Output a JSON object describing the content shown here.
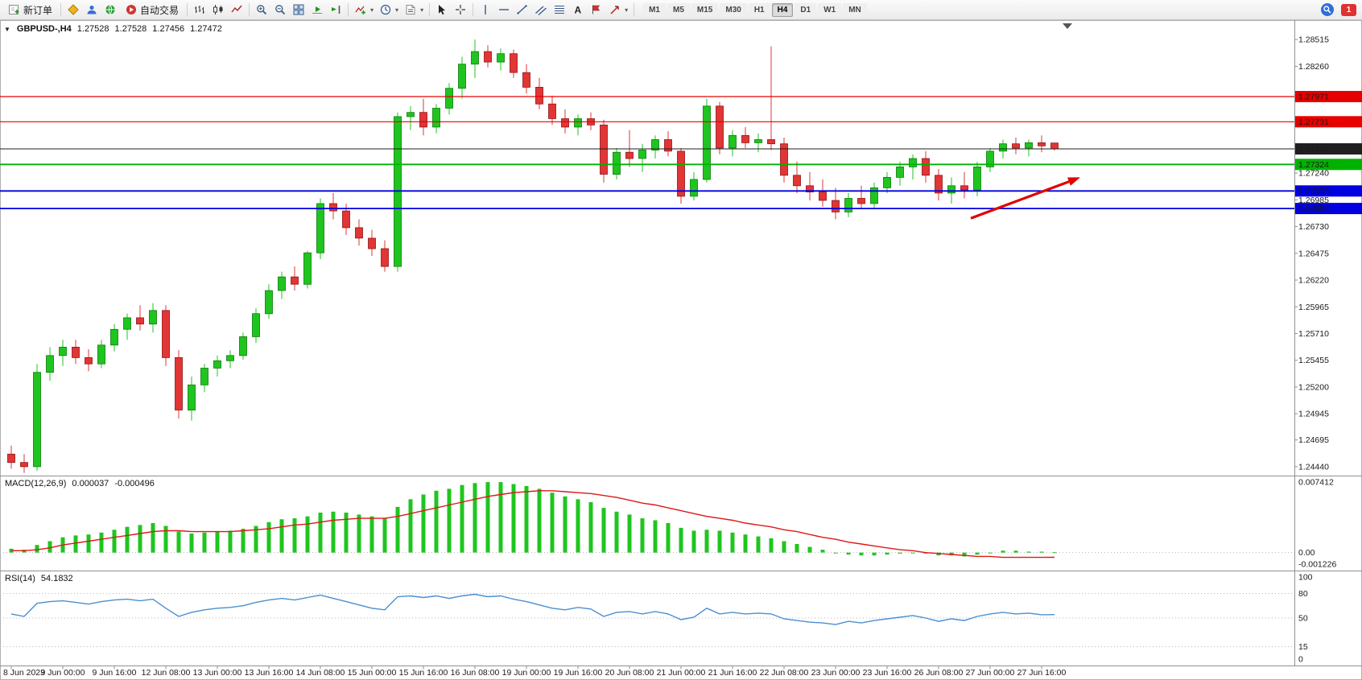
{
  "toolbar": {
    "new_order_label": "新订单",
    "autotrading_label": "自动交易",
    "timeframes": [
      "M1",
      "M5",
      "M15",
      "M30",
      "H1",
      "H4",
      "D1",
      "W1",
      "MN"
    ],
    "active_timeframe": "H4",
    "notification_count": "1"
  },
  "chart_header": {
    "symbol": "GBPUSD-,H4",
    "open": "1.27528",
    "high": "1.27528",
    "low": "1.27456",
    "close": "1.27472"
  },
  "indicator_labels": {
    "macd_name": "MACD(12,26,9)",
    "macd_value": "0.000037",
    "macd_signal_value": "-0.000496",
    "rsi_name": "RSI(14)",
    "rsi_value": "54.1832"
  },
  "axes": {
    "price_gridlines": [
      1.28515,
      1.2826,
      1.2724,
      1.26985,
      1.2673,
      1.26475,
      1.2622,
      1.25965,
      1.2571,
      1.25455,
      1.252,
      1.24945,
      1.24695,
      1.2444
    ],
    "macd_axis": [
      {
        "value": 0.007412,
        "label": "0.007412"
      },
      {
        "value": 0,
        "label": "0.00"
      },
      {
        "value": -0.001226,
        "label": "-0.001226"
      }
    ],
    "rsi_axis": [
      {
        "value": 100,
        "label": "100"
      },
      {
        "value": 80,
        "label": "80"
      },
      {
        "value": 50,
        "label": "50"
      },
      {
        "value": 15,
        "label": "15"
      },
      {
        "value": 0,
        "label": "0"
      }
    ],
    "time_labels": [
      "8 Jun 2023",
      "9 Jun 00:00",
      "9 Jun 16:00",
      "12 Jun 08:00",
      "13 Jun 00:00",
      "13 Jun 16:00",
      "14 Jun 08:00",
      "15 Jun 00:00",
      "15 Jun 16:00",
      "16 Jun 08:00",
      "19 Jun 00:00",
      "19 Jun 16:00",
      "20 Jun 08:00",
      "21 Jun 00:00",
      "21 Jun 16:00",
      "22 Jun 08:00",
      "23 Jun 00:00",
      "23 Jun 16:00",
      "26 Jun 08:00",
      "27 Jun 00:00",
      "27 Jun 16:00"
    ]
  },
  "levels": [
    {
      "name": "resistance-line-1",
      "price": 1.27971,
      "label": "1.27971",
      "color": "#e60000",
      "width": 1.2
    },
    {
      "name": "resistance-line-2",
      "price": 1.27731,
      "label": "1.27731",
      "color": "#e60000",
      "width": 1.2
    },
    {
      "name": "current-price-line",
      "price": 1.27472,
      "label": "1.27472",
      "color": "#1f1f1f",
      "width": 1
    },
    {
      "name": "support-line-green",
      "price": 1.27324,
      "label": "1.27324",
      "color": "#00b200",
      "width": 1.8
    },
    {
      "name": "support-line-blue-1",
      "price": 1.2707,
      "label": "1.27070",
      "color": "#0000e0",
      "width": 1.8
    },
    {
      "name": "support-line-blue-2",
      "price": 1.26903,
      "label": "1.26903",
      "color": "#0000e0",
      "width": 1.8
    }
  ],
  "annotation": {
    "arrow": {
      "from_index": 74.5,
      "from_price": 1.2681,
      "to_index": 83,
      "to_price": 1.272,
      "color": "#e00000"
    }
  },
  "chart_data": {
    "type": "candlestick",
    "symbol": "GBPUSD",
    "timeframe": "H4",
    "price_range": {
      "min": 1.2437,
      "max": 1.28685
    },
    "shift_marker_index": 82,
    "colors": {
      "up": "#1fc51f",
      "up_border": "#0b7a0b",
      "down": "#e23535",
      "down_border": "#8f1414",
      "macd_histogram": "#1fc51f",
      "macd_signal": "#e01717",
      "rsi_line": "#4a8fd2",
      "grid_dotted": "#b5b5b5",
      "arrow": "#e00000"
    },
    "candles": [
      [
        1.2456,
        1.2464,
        1.2442,
        1.2448
      ],
      [
        1.2448,
        1.2456,
        1.2438,
        1.2444
      ],
      [
        1.2444,
        1.2542,
        1.244,
        1.2534
      ],
      [
        1.2534,
        1.2558,
        1.2526,
        1.255
      ],
      [
        1.255,
        1.2565,
        1.254,
        1.2558
      ],
      [
        1.2558,
        1.2565,
        1.2542,
        1.2548
      ],
      [
        1.2548,
        1.2556,
        1.2535,
        1.2542
      ],
      [
        1.2542,
        1.2565,
        1.2538,
        1.256
      ],
      [
        1.256,
        1.258,
        1.2554,
        1.2575
      ],
      [
        1.2575,
        1.259,
        1.2565,
        1.2586
      ],
      [
        1.2586,
        1.2598,
        1.2574,
        1.258
      ],
      [
        1.258,
        1.26,
        1.2572,
        1.2593
      ],
      [
        1.2593,
        1.2598,
        1.254,
        1.2548
      ],
      [
        1.2548,
        1.2555,
        1.249,
        1.2498
      ],
      [
        1.2498,
        1.253,
        1.2488,
        1.2522
      ],
      [
        1.2522,
        1.2542,
        1.2515,
        1.2538
      ],
      [
        1.2538,
        1.255,
        1.253,
        1.2545
      ],
      [
        1.2545,
        1.2555,
        1.2538,
        1.255
      ],
      [
        1.255,
        1.2572,
        1.2546,
        1.2568
      ],
      [
        1.2568,
        1.2595,
        1.2562,
        1.259
      ],
      [
        1.259,
        1.2618,
        1.2585,
        1.2612
      ],
      [
        1.2612,
        1.263,
        1.2604,
        1.2625
      ],
      [
        1.2625,
        1.2635,
        1.2612,
        1.2618
      ],
      [
        1.2618,
        1.265,
        1.2614,
        1.2648
      ],
      [
        1.2648,
        1.27,
        1.2642,
        1.2695
      ],
      [
        1.2695,
        1.2705,
        1.268,
        1.2688
      ],
      [
        1.2688,
        1.2695,
        1.2665,
        1.2672
      ],
      [
        1.2672,
        1.268,
        1.2655,
        1.2662
      ],
      [
        1.2662,
        1.267,
        1.2645,
        1.2652
      ],
      [
        1.2652,
        1.266,
        1.263,
        1.2635
      ],
      [
        1.2635,
        1.2782,
        1.263,
        1.2778
      ],
      [
        1.2778,
        1.2788,
        1.2765,
        1.2782
      ],
      [
        1.2782,
        1.2795,
        1.276,
        1.2768
      ],
      [
        1.2768,
        1.279,
        1.2762,
        1.2786
      ],
      [
        1.2786,
        1.281,
        1.278,
        1.2805
      ],
      [
        1.2805,
        1.2835,
        1.2795,
        1.2828
      ],
      [
        1.2828,
        1.28515,
        1.2815,
        1.284
      ],
      [
        1.284,
        1.2846,
        1.2825,
        1.283
      ],
      [
        1.283,
        1.2843,
        1.2822,
        1.2838
      ],
      [
        1.2838,
        1.2842,
        1.2815,
        1.282
      ],
      [
        1.282,
        1.2828,
        1.28,
        1.2806
      ],
      [
        1.2806,
        1.2815,
        1.2785,
        1.279
      ],
      [
        1.279,
        1.2798,
        1.277,
        1.2776
      ],
      [
        1.2776,
        1.2785,
        1.2762,
        1.2768
      ],
      [
        1.2768,
        1.278,
        1.276,
        1.2776
      ],
      [
        1.2776,
        1.2782,
        1.2765,
        1.277
      ],
      [
        1.277,
        1.2775,
        1.2715,
        1.2723
      ],
      [
        1.2723,
        1.2748,
        1.2718,
        1.2744
      ],
      [
        1.2744,
        1.2765,
        1.273,
        1.2738
      ],
      [
        1.2738,
        1.2752,
        1.2725,
        1.2746
      ],
      [
        1.2746,
        1.276,
        1.2738,
        1.2756
      ],
      [
        1.2756,
        1.2764,
        1.274,
        1.2745
      ],
      [
        1.2745,
        1.2748,
        1.2695,
        1.2702
      ],
      [
        1.2702,
        1.2725,
        1.2698,
        1.2718
      ],
      [
        1.2718,
        1.2795,
        1.2715,
        1.2788
      ],
      [
        1.2788,
        1.2792,
        1.2742,
        1.2748
      ],
      [
        1.2748,
        1.2765,
        1.274,
        1.276
      ],
      [
        1.276,
        1.2768,
        1.2748,
        1.2753
      ],
      [
        1.2753,
        1.2762,
        1.2744,
        1.2756
      ],
      [
        1.2756,
        1.2845,
        1.2746,
        1.2752
      ],
      [
        1.2752,
        1.2758,
        1.2715,
        1.2722
      ],
      [
        1.2722,
        1.2735,
        1.2705,
        1.2712
      ],
      [
        1.2712,
        1.2725,
        1.2698,
        1.2706
      ],
      [
        1.2706,
        1.2718,
        1.2692,
        1.2698
      ],
      [
        1.2698,
        1.271,
        1.268,
        1.2687
      ],
      [
        1.2687,
        1.2705,
        1.2682,
        1.27
      ],
      [
        1.27,
        1.2712,
        1.269,
        1.2695
      ],
      [
        1.2695,
        1.2715,
        1.269,
        1.271
      ],
      [
        1.271,
        1.2725,
        1.2705,
        1.272
      ],
      [
        1.272,
        1.2735,
        1.2712,
        1.273
      ],
      [
        1.273,
        1.2742,
        1.2718,
        1.2738
      ],
      [
        1.2738,
        1.2745,
        1.2715,
        1.2722
      ],
      [
        1.2722,
        1.2728,
        1.2698,
        1.2705
      ],
      [
        1.2705,
        1.272,
        1.2695,
        1.2712
      ],
      [
        1.2712,
        1.2725,
        1.27,
        1.2708
      ],
      [
        1.2708,
        1.2735,
        1.2702,
        1.273
      ],
      [
        1.273,
        1.2748,
        1.2725,
        1.2745
      ],
      [
        1.2745,
        1.2756,
        1.2738,
        1.2752
      ],
      [
        1.2752,
        1.2758,
        1.2742,
        1.2748
      ],
      [
        1.2748,
        1.2756,
        1.274,
        1.2753
      ],
      [
        1.2753,
        1.276,
        1.2744,
        1.275
      ],
      [
        1.27528,
        1.27528,
        1.27456,
        1.27472
      ]
    ],
    "indicators": {
      "macd": {
        "params": "12,26,9",
        "range": {
          "min": -0.001226,
          "max": 0.007412
        },
        "histogram": [
          0.0004,
          0.0003,
          0.0008,
          0.0012,
          0.0016,
          0.0018,
          0.0019,
          0.0021,
          0.0024,
          0.0027,
          0.0029,
          0.0031,
          0.0028,
          0.0022,
          0.002,
          0.0021,
          0.0022,
          0.0023,
          0.0025,
          0.0028,
          0.0032,
          0.0035,
          0.0036,
          0.0038,
          0.0042,
          0.0043,
          0.0042,
          0.004,
          0.0038,
          0.0036,
          0.0048,
          0.0056,
          0.0061,
          0.0065,
          0.0067,
          0.0071,
          0.0073,
          0.0074,
          0.0074,
          0.0072,
          0.007,
          0.0067,
          0.0063,
          0.0059,
          0.0056,
          0.0053,
          0.0047,
          0.0043,
          0.004,
          0.0036,
          0.0034,
          0.0031,
          0.0026,
          0.0023,
          0.0024,
          0.0023,
          0.0021,
          0.0019,
          0.0017,
          0.0015,
          0.0012,
          0.0009,
          0.0006,
          0.0003,
          0.0,
          -0.0002,
          -0.0003,
          -0.0003,
          -0.0002,
          -0.0001,
          0.0,
          -0.0001,
          -0.0003,
          -0.0003,
          -0.0004,
          -0.0002,
          0.0,
          0.0002,
          0.0002,
          0.0001,
          0.0001,
          3.7e-05
        ],
        "signal": [
          0.0002,
          0.0002,
          0.0003,
          0.0005,
          0.0008,
          0.001,
          0.0012,
          0.0014,
          0.0016,
          0.0018,
          0.002,
          0.0022,
          0.0023,
          0.0023,
          0.0022,
          0.0022,
          0.0022,
          0.0022,
          0.0023,
          0.0024,
          0.0025,
          0.0027,
          0.0029,
          0.003,
          0.0032,
          0.0034,
          0.0035,
          0.0036,
          0.0036,
          0.0036,
          0.0038,
          0.0041,
          0.0044,
          0.0047,
          0.005,
          0.0053,
          0.0056,
          0.0059,
          0.0061,
          0.0063,
          0.0064,
          0.0065,
          0.0065,
          0.0064,
          0.0063,
          0.0062,
          0.006,
          0.0058,
          0.0055,
          0.0052,
          0.005,
          0.0047,
          0.0044,
          0.0041,
          0.0038,
          0.0036,
          0.0034,
          0.0031,
          0.0029,
          0.0027,
          0.0024,
          0.0022,
          0.0019,
          0.0016,
          0.0014,
          0.0011,
          0.0009,
          0.0007,
          0.0005,
          0.0003,
          0.0002,
          0.0,
          -0.0001,
          -0.0002,
          -0.0003,
          -0.0004,
          -0.0004,
          -0.0005,
          -0.0005,
          -0.0005,
          -0.0005,
          -0.000496
        ]
      },
      "rsi": {
        "period": 14,
        "range": {
          "min": 0,
          "max": 100
        },
        "levels": [
          80,
          50,
          15
        ],
        "values": [
          55,
          52,
          68,
          70,
          71,
          69,
          67,
          70,
          72,
          73,
          71,
          73,
          62,
          52,
          57,
          60,
          62,
          63,
          65,
          69,
          72,
          74,
          72,
          75,
          78,
          74,
          70,
          66,
          62,
          60,
          76,
          77,
          75,
          77,
          74,
          77,
          79,
          76,
          77,
          73,
          70,
          66,
          62,
          60,
          63,
          61,
          52,
          57,
          58,
          55,
          58,
          55,
          48,
          51,
          62,
          55,
          57,
          55,
          56,
          55,
          49,
          47,
          45,
          44,
          42,
          46,
          44,
          47,
          49,
          51,
          53,
          50,
          46,
          49,
          47,
          52,
          55,
          57,
          55,
          56,
          54,
          54.18
        ]
      }
    }
  }
}
